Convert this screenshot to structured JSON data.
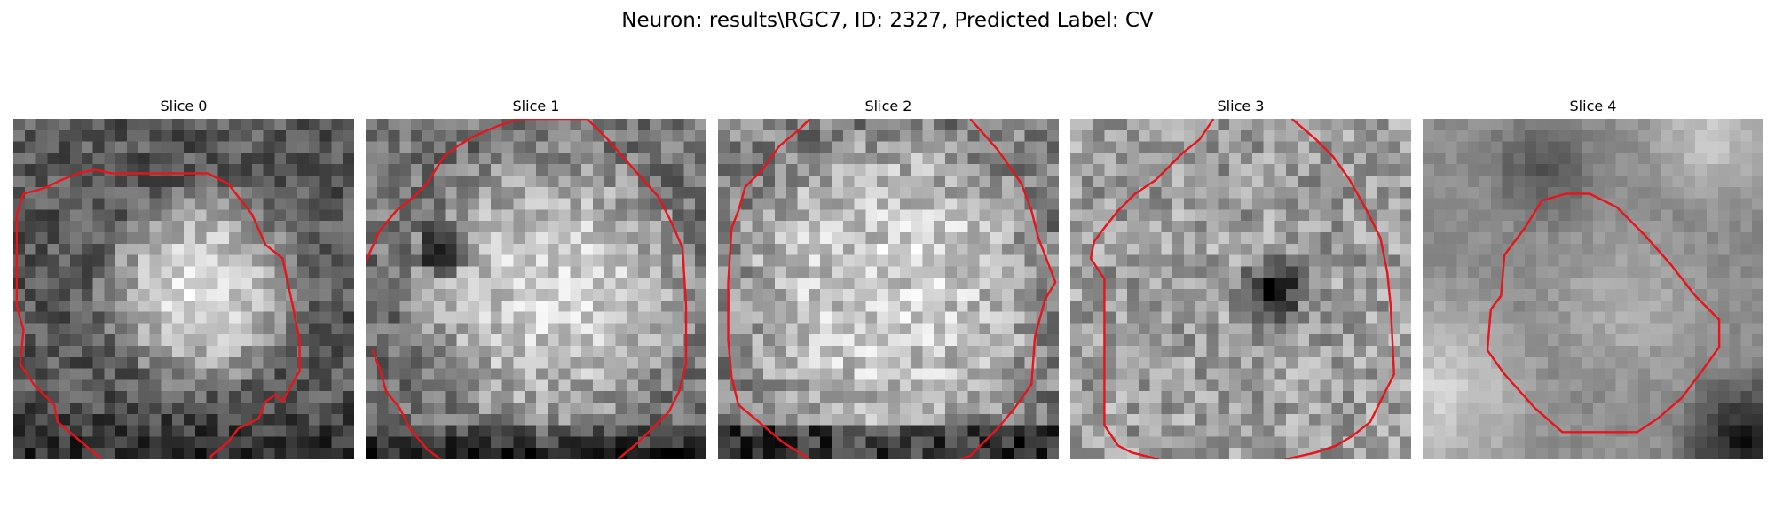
{
  "figure": {
    "title": "Neuron: results\\RGC7, ID: 2327, Predicted Label: CV",
    "contour_color": "#e8141a",
    "colormap": "gray"
  },
  "panels": [
    {
      "title": "Slice 0",
      "texture": "Bright disc in the center-right, darker rim at the bottom",
      "contour": [
        [
          0.26,
          1.0
        ],
        [
          0.13,
          0.89
        ],
        [
          0.12,
          0.84
        ],
        [
          0.06,
          0.78
        ],
        [
          0.02,
          0.72
        ],
        [
          0.03,
          0.62
        ],
        [
          0.01,
          0.55
        ],
        [
          0.01,
          0.28
        ],
        [
          0.03,
          0.22
        ],
        [
          0.07,
          0.21
        ],
        [
          0.1,
          0.2
        ],
        [
          0.14,
          0.18
        ],
        [
          0.19,
          0.16
        ],
        [
          0.24,
          0.15
        ],
        [
          0.29,
          0.16
        ],
        [
          0.33,
          0.16
        ],
        [
          0.38,
          0.16
        ],
        [
          0.43,
          0.16
        ],
        [
          0.57,
          0.16
        ],
        [
          0.63,
          0.19
        ],
        [
          0.7,
          0.28
        ],
        [
          0.74,
          0.37
        ],
        [
          0.79,
          0.41
        ],
        [
          0.82,
          0.55
        ],
        [
          0.84,
          0.65
        ],
        [
          0.84,
          0.74
        ],
        [
          0.79,
          0.83
        ],
        [
          0.77,
          0.81
        ],
        [
          0.74,
          0.83
        ],
        [
          0.72,
          0.88
        ],
        [
          0.66,
          0.91
        ],
        [
          0.63,
          0.95
        ],
        [
          0.58,
          0.99
        ],
        [
          0.58,
          1.0
        ]
      ]
    },
    {
      "title": "Slice 1",
      "texture": "Bright disc filling the patch, dark spot at left, dark bottom edge",
      "contour": [
        [
          0.0,
          0.42
        ],
        [
          0.04,
          0.33
        ],
        [
          0.09,
          0.27
        ],
        [
          0.14,
          0.23
        ],
        [
          0.18,
          0.19
        ],
        [
          0.23,
          0.11
        ],
        [
          0.27,
          0.08
        ],
        [
          0.32,
          0.05
        ],
        [
          0.39,
          0.02
        ],
        [
          0.45,
          0.0
        ],
        [
          0.65,
          0.0
        ],
        [
          0.71,
          0.06
        ],
        [
          0.78,
          0.14
        ],
        [
          0.86,
          0.23
        ],
        [
          0.9,
          0.31
        ],
        [
          0.93,
          0.38
        ],
        [
          0.94,
          0.55
        ],
        [
          0.94,
          0.72
        ],
        [
          0.92,
          0.8
        ],
        [
          0.89,
          0.86
        ],
        [
          0.85,
          0.9
        ],
        [
          0.8,
          0.95
        ],
        [
          0.74,
          1.0
        ]
      ],
      "contour_2": [
        [
          0.02,
          0.68
        ],
        [
          0.04,
          0.73
        ],
        [
          0.06,
          0.8
        ],
        [
          0.1,
          0.85
        ],
        [
          0.13,
          0.91
        ],
        [
          0.18,
          0.97
        ],
        [
          0.22,
          1.0
        ]
      ]
    },
    {
      "title": "Slice 2",
      "texture": "Evenly bright noisy disc, darker border",
      "contour": [
        [
          0.27,
          1.0
        ],
        [
          0.19,
          0.95
        ],
        [
          0.12,
          0.89
        ],
        [
          0.06,
          0.84
        ],
        [
          0.04,
          0.76
        ],
        [
          0.03,
          0.65
        ],
        [
          0.03,
          0.48
        ],
        [
          0.04,
          0.32
        ],
        [
          0.06,
          0.27
        ],
        [
          0.08,
          0.2
        ],
        [
          0.13,
          0.15
        ],
        [
          0.18,
          0.08
        ],
        [
          0.24,
          0.03
        ],
        [
          0.27,
          0.0
        ]
      ],
      "contour_2": [
        [
          0.74,
          0.0
        ],
        [
          0.82,
          0.09
        ],
        [
          0.89,
          0.19
        ],
        [
          0.92,
          0.27
        ],
        [
          0.94,
          0.35
        ],
        [
          0.99,
          0.48
        ],
        [
          0.96,
          0.53
        ],
        [
          0.93,
          0.64
        ],
        [
          0.92,
          0.78
        ],
        [
          0.87,
          0.85
        ],
        [
          0.82,
          0.91
        ],
        [
          0.74,
          0.99
        ],
        [
          0.71,
          1.0
        ]
      ]
    },
    {
      "title": "Slice 3",
      "texture": "Grey noisy patch with a dark nucleus-like blob slightly right of center",
      "contour": [
        [
          0.42,
          0.0
        ],
        [
          0.38,
          0.06
        ],
        [
          0.33,
          0.1
        ],
        [
          0.29,
          0.14
        ],
        [
          0.25,
          0.18
        ],
        [
          0.19,
          0.22
        ],
        [
          0.14,
          0.27
        ],
        [
          0.1,
          0.32
        ],
        [
          0.07,
          0.36
        ],
        [
          0.06,
          0.41
        ],
        [
          0.1,
          0.47
        ],
        [
          0.1,
          0.9
        ],
        [
          0.14,
          0.96
        ],
        [
          0.18,
          0.98
        ],
        [
          0.26,
          1.0
        ]
      ],
      "contour_2": [
        [
          0.65,
          0.0
        ],
        [
          0.72,
          0.06
        ],
        [
          0.77,
          0.11
        ],
        [
          0.82,
          0.18
        ],
        [
          0.87,
          0.27
        ],
        [
          0.91,
          0.35
        ],
        [
          0.93,
          0.45
        ],
        [
          0.94,
          0.55
        ],
        [
          0.95,
          0.75
        ],
        [
          0.91,
          0.83
        ],
        [
          0.88,
          0.89
        ],
        [
          0.83,
          0.93
        ],
        [
          0.78,
          0.96
        ],
        [
          0.72,
          0.98
        ],
        [
          0.63,
          1.0
        ]
      ]
    },
    {
      "title": "Slice 4",
      "texture": "Blurry bright region with dark band at top, bright lower-left, dark lower-right corner",
      "contour": [
        [
          0.35,
          0.24
        ],
        [
          0.42,
          0.22
        ],
        [
          0.49,
          0.22
        ],
        [
          0.57,
          0.26
        ],
        [
          0.65,
          0.34
        ],
        [
          0.73,
          0.43
        ],
        [
          0.8,
          0.52
        ],
        [
          0.87,
          0.59
        ],
        [
          0.87,
          0.67
        ],
        [
          0.82,
          0.74
        ],
        [
          0.76,
          0.82
        ],
        [
          0.69,
          0.88
        ],
        [
          0.63,
          0.92
        ],
        [
          0.51,
          0.92
        ],
        [
          0.41,
          0.92
        ],
        [
          0.33,
          0.85
        ],
        [
          0.24,
          0.75
        ],
        [
          0.19,
          0.68
        ],
        [
          0.2,
          0.56
        ],
        [
          0.23,
          0.52
        ],
        [
          0.24,
          0.4
        ],
        [
          0.3,
          0.32
        ],
        [
          0.35,
          0.24
        ]
      ]
    }
  ]
}
